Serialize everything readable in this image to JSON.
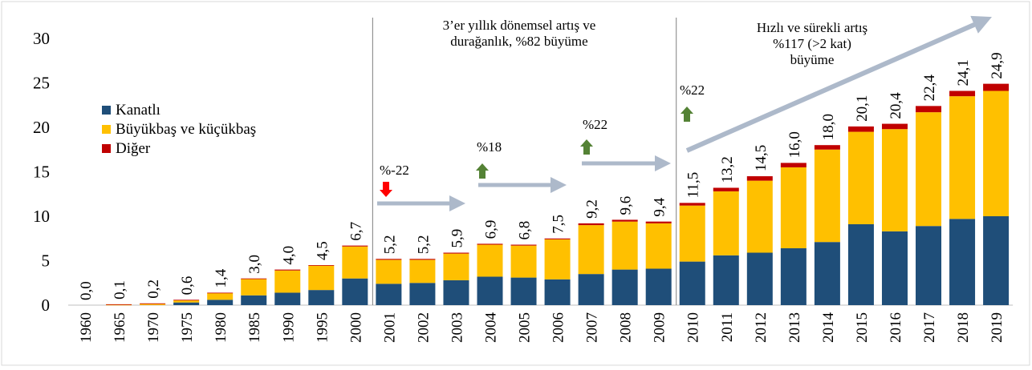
{
  "chart_data": {
    "type": "bar",
    "stacked": true,
    "categories": [
      "1960",
      "1965",
      "1970",
      "1975",
      "1980",
      "1985",
      "1990",
      "1995",
      "2000",
      "2001",
      "2002",
      "2003",
      "2004",
      "2005",
      "2006",
      "2007",
      "2008",
      "2009",
      "2010",
      "2011",
      "2012",
      "2013",
      "2014",
      "2015",
      "2016",
      "2017",
      "2018",
      "2019"
    ],
    "series": [
      {
        "name": "Kanatlı",
        "color": "#1f4e79",
        "values": [
          0,
          0,
          0,
          0.3,
          0.6,
          1.1,
          1.4,
          1.7,
          3.0,
          2.4,
          2.5,
          2.8,
          3.2,
          3.1,
          2.9,
          3.5,
          4.0,
          4.1,
          4.9,
          5.6,
          5.9,
          6.4,
          7.1,
          9.1,
          8.3,
          8.9,
          9.7,
          10.0
        ]
      },
      {
        "name": "Büyükbaş ve küçükbaş",
        "color": "#ffc000",
        "values": [
          0,
          0.05,
          0.15,
          0.25,
          0.75,
          1.85,
          2.5,
          2.75,
          3.6,
          2.7,
          2.6,
          3.0,
          3.6,
          3.6,
          4.5,
          5.5,
          5.4,
          5.1,
          6.3,
          7.2,
          8.1,
          9.1,
          10.4,
          10.4,
          11.5,
          12.8,
          13.8,
          14.1
        ]
      },
      {
        "name": "Diğer",
        "color": "#c00000",
        "values": [
          0,
          0.05,
          0.05,
          0.05,
          0.05,
          0.05,
          0.1,
          0.05,
          0.1,
          0.1,
          0.1,
          0.1,
          0.1,
          0.1,
          0.1,
          0.2,
          0.2,
          0.2,
          0.3,
          0.4,
          0.5,
          0.5,
          0.5,
          0.6,
          0.6,
          0.7,
          0.6,
          0.8
        ]
      }
    ],
    "totals": [
      "0,0",
      "0,1",
      "0,2",
      "0,6",
      "1,4",
      "3,0",
      "4,0",
      "4,5",
      "6,7",
      "5,2",
      "5,2",
      "5,9",
      "6,9",
      "6,8",
      "7,5",
      "9,2",
      "9,6",
      "9,4",
      "11,5",
      "13,2",
      "14,5",
      "16,0",
      "18,0",
      "20,1",
      "20,4",
      "22,4",
      "24,1",
      "24,9"
    ],
    "y_ticks": [
      "0",
      "5",
      "10",
      "15",
      "20",
      "25",
      "30"
    ],
    "ylim": [
      0,
      30
    ],
    "grid": false,
    "legend_position": "left-middle",
    "period_titles": [
      {
        "lines": [
          "3’er yıllık dönemsel artış ve",
          "durağanlık, %82 büyüme"
        ]
      },
      {
        "lines": [
          "Hızlı ve sürekli artış",
          "%117 (>2 kat)",
          "büyüme"
        ]
      }
    ],
    "annotations": [
      {
        "text": "%-22",
        "direction": "down",
        "color": "#ff0000"
      },
      {
        "text": "%18",
        "direction": "up",
        "color": "#548235"
      },
      {
        "text": "%22",
        "direction": "up",
        "color": "#548235"
      },
      {
        "text": "%22",
        "direction": "up",
        "color": "#548235"
      }
    ],
    "arrow_color": "#adb9ca"
  }
}
